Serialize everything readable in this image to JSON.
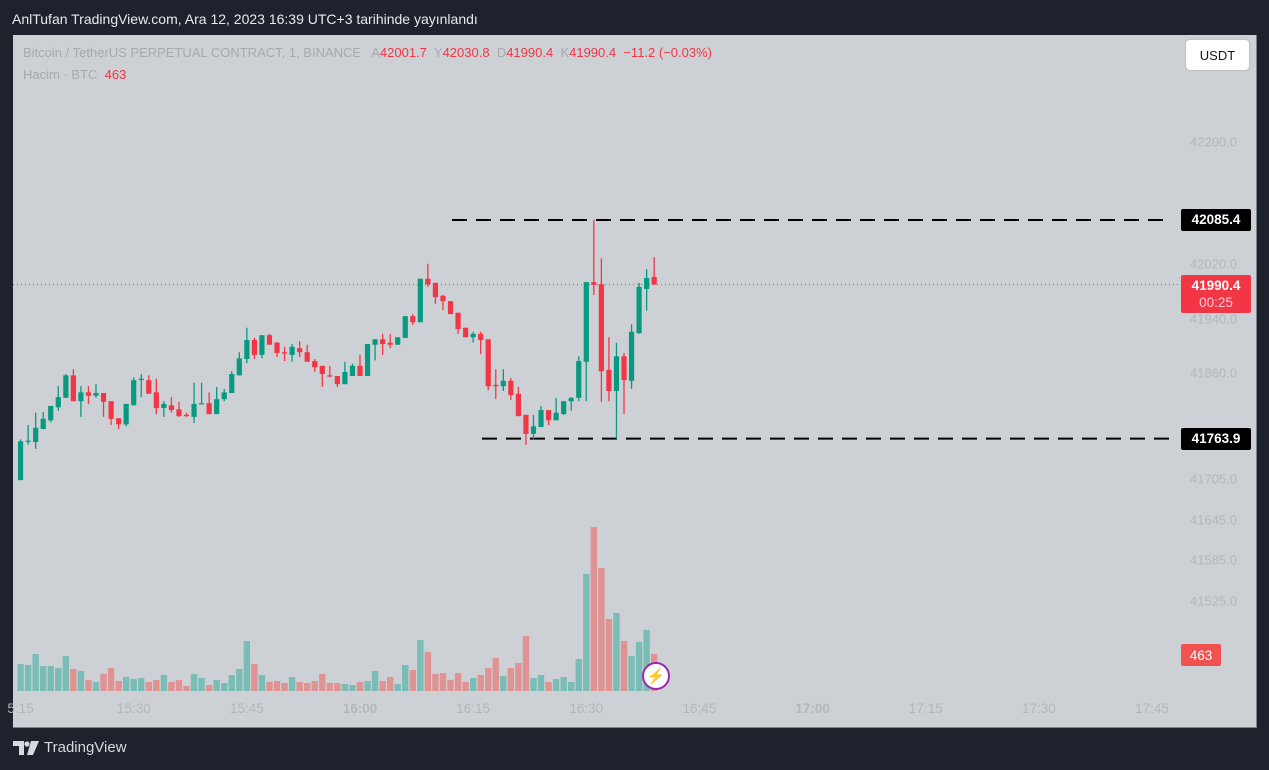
{
  "title": "AnlTufan TradingView.com, Ara 12, 2023 16:39 UTC+3 tarihinde yayınlandı",
  "legend": {
    "symbol": "Bitcoin / TetherUS PERPETUAL CONTRACT, 1, BINANCE",
    "open_label": "A",
    "open": "42001.7",
    "high_label": "Y",
    "high": "42030.8",
    "low_label": "D",
    "low": "41990.4",
    "close_label": "K",
    "close": "41990.4",
    "change": "−11.2 (−0.03%)",
    "volume_label": "Hacim · BTC",
    "volume": "463"
  },
  "currency_button": "USDT",
  "price_axis": [
    "42200.0",
    "42020.0",
    "41940.0",
    "41860.0",
    "41705.0",
    "41645.0",
    "41585.0",
    "41525.0"
  ],
  "price_axis_values": [
    42200,
    42020,
    41940,
    41860,
    41705,
    41645,
    41585,
    41525
  ],
  "tags": {
    "resistance": "42085.4",
    "last_price": "41990.4",
    "countdown": "00:25",
    "support": "41763.9",
    "volume": "463"
  },
  "time_axis": [
    {
      "label": "5:15",
      "min": -45,
      "bold": false
    },
    {
      "label": "15:30",
      "min": -30,
      "bold": false
    },
    {
      "label": "15:45",
      "min": -15,
      "bold": false
    },
    {
      "label": "16:00",
      "min": 0,
      "bold": true
    },
    {
      "label": "16:15",
      "min": 15,
      "bold": false
    },
    {
      "label": "16:30",
      "min": 30,
      "bold": false
    },
    {
      "label": "16:45",
      "min": 45,
      "bold": false
    },
    {
      "label": "17:00",
      "min": 60,
      "bold": true
    },
    {
      "label": "17:15",
      "min": 75,
      "bold": false
    },
    {
      "label": "17:30",
      "min": 90,
      "bold": false
    },
    {
      "label": "17:45",
      "min": 105,
      "bold": false
    }
  ],
  "brand": "TradingView",
  "colors": {
    "up": "#089981",
    "down": "#f23645",
    "up_vol": "#7abdb7",
    "down_vol": "#e09393",
    "line": "#000000",
    "accent": "#9c27b0"
  },
  "chart_data": {
    "type": "candlestick",
    "interval_minutes": 1,
    "first_candle_minute_from_16_00": -46,
    "horizontal_lines": [
      42085.4,
      41763.9
    ],
    "last_price": 41990.4,
    "candles": [
      [
        41688,
        41722,
        41686,
        41705
      ],
      [
        41703,
        41763,
        41703,
        41760
      ],
      [
        41760,
        41784,
        41755,
        41761
      ],
      [
        41759,
        41802,
        41749,
        41780
      ],
      [
        41778,
        41803,
        41778,
        41793
      ],
      [
        41791,
        41812,
        41788,
        41812
      ],
      [
        41810,
        41841,
        41805,
        41825
      ],
      [
        41824,
        41859,
        41824,
        41857
      ],
      [
        41857,
        41866,
        41819,
        41819
      ],
      [
        41819,
        41841,
        41796,
        41832
      ],
      [
        41832,
        41841,
        41815,
        41827
      ],
      [
        41827,
        41844,
        41824,
        41831
      ],
      [
        41831,
        41831,
        41796,
        41818
      ],
      [
        41819,
        41819,
        41784,
        41793
      ],
      [
        41794,
        41794,
        41778,
        41785
      ],
      [
        41785,
        41815,
        41782,
        41815
      ],
      [
        41813,
        41854,
        41813,
        41850
      ],
      [
        41850,
        41859,
        41825,
        41852
      ],
      [
        41850,
        41857,
        41830,
        41830
      ],
      [
        41832,
        41852,
        41800,
        41809
      ],
      [
        41809,
        41819,
        41796,
        41815
      ],
      [
        41813,
        41825,
        41802,
        41806
      ],
      [
        41807,
        41818,
        41796,
        41797
      ],
      [
        41799,
        41802,
        41796,
        41797
      ],
      [
        41796,
        41846,
        41787,
        41815
      ],
      [
        41815,
        41846,
        41815,
        41816
      ],
      [
        41816,
        41832,
        41800,
        41800
      ],
      [
        41800,
        41840,
        41800,
        41822
      ],
      [
        41822,
        41837,
        41819,
        41832
      ],
      [
        41831,
        41863,
        41831,
        41859
      ],
      [
        41857,
        41891,
        41857,
        41882
      ],
      [
        41881,
        41927,
        41875,
        41909
      ],
      [
        41909,
        41912,
        41881,
        41887
      ],
      [
        41887,
        41916,
        41882,
        41916
      ],
      [
        41916,
        41918,
        41902,
        41902
      ],
      [
        41905,
        41906,
        41884,
        41890
      ],
      [
        41891,
        41899,
        41878,
        41889
      ],
      [
        41887,
        41903,
        41877,
        41899
      ],
      [
        41897,
        41907,
        41884,
        41891
      ],
      [
        41891,
        41902,
        41877,
        41877
      ],
      [
        41878,
        41881,
        41862,
        41869
      ],
      [
        41871,
        41871,
        41840,
        41859
      ],
      [
        41857,
        41871,
        41854,
        41856
      ],
      [
        41856,
        41856,
        41840,
        41844
      ],
      [
        41844,
        41877,
        41844,
        41862
      ],
      [
        41856,
        41874,
        41856,
        41871
      ],
      [
        41871,
        41887,
        41856,
        41856
      ],
      [
        41856,
        41903,
        41856,
        41903
      ],
      [
        41902,
        41910,
        41879,
        41910
      ],
      [
        41910,
        41918,
        41887,
        41903
      ],
      [
        41905,
        41918,
        41897,
        41902
      ],
      [
        41902,
        41913,
        41902,
        41913
      ],
      [
        41912,
        41944,
        41912,
        41944
      ],
      [
        41944,
        41947,
        41931,
        41935
      ],
      [
        41935,
        41999,
        41935,
        41999
      ],
      [
        41999,
        42021,
        41987,
        41991
      ],
      [
        41993,
        41993,
        41962,
        41972
      ],
      [
        41974,
        41975,
        41953,
        41966
      ],
      [
        41966,
        41966,
        41947,
        41947
      ],
      [
        41949,
        41949,
        41918,
        41925
      ],
      [
        41927,
        41927,
        41913,
        41913
      ],
      [
        41913,
        41921,
        41905,
        41918
      ],
      [
        41918,
        41921,
        41888,
        41909
      ],
      [
        41910,
        41910,
        41835,
        41841
      ],
      [
        41843,
        41866,
        41822,
        41841
      ],
      [
        41841,
        41866,
        41834,
        41849
      ],
      [
        41849,
        41853,
        41821,
        41828
      ],
      [
        41830,
        41840,
        41797,
        41797
      ],
      [
        41799,
        41799,
        41755,
        41771
      ],
      [
        41771,
        41799,
        41762,
        41782
      ],
      [
        41781,
        41812,
        41781,
        41806
      ],
      [
        41806,
        41806,
        41784,
        41791
      ],
      [
        41791,
        41824,
        41791,
        41802
      ],
      [
        41800,
        41819,
        41799,
        41819
      ],
      [
        41819,
        41825,
        41805,
        41824
      ],
      [
        41824,
        41885,
        41819,
        41878
      ],
      [
        41877,
        41994,
        41819,
        41994
      ],
      [
        41994,
        42085.4,
        41975,
        41990
      ],
      [
        41991,
        42029,
        41818,
        41863
      ],
      [
        41865,
        41913,
        41819,
        41834
      ],
      [
        41834,
        41905,
        41763.9,
        41885
      ],
      [
        41885,
        41890,
        41800,
        41850
      ],
      [
        41849,
        41932,
        41837,
        41921
      ],
      [
        41919,
        41993,
        41918,
        41987
      ],
      [
        41984,
        42013,
        41952,
        42000
      ],
      [
        42001.7,
        42030.8,
        41990.4,
        41990.4
      ]
    ],
    "volumes": [
      263,
      338,
      325,
      463,
      313,
      313,
      288,
      438,
      275,
      250,
      138,
      113,
      213,
      288,
      125,
      175,
      150,
      163,
      113,
      138,
      200,
      113,
      138,
      63,
      213,
      163,
      75,
      138,
      100,
      200,
      275,
      625,
      338,
      200,
      113,
      125,
      100,
      175,
      113,
      100,
      125,
      213,
      100,
      100,
      88,
      75,
      113,
      125,
      250,
      125,
      175,
      88,
      325,
      263,
      638,
      488,
      213,
      225,
      138,
      225,
      113,
      163,
      200,
      288,
      413,
      188,
      288,
      350,
      688,
      163,
      200,
      113,
      150,
      175,
      113,
      400,
      1463,
      2050,
      1538,
      900,
      975,
      625,
      438,
      613,
      763,
      463
    ]
  }
}
